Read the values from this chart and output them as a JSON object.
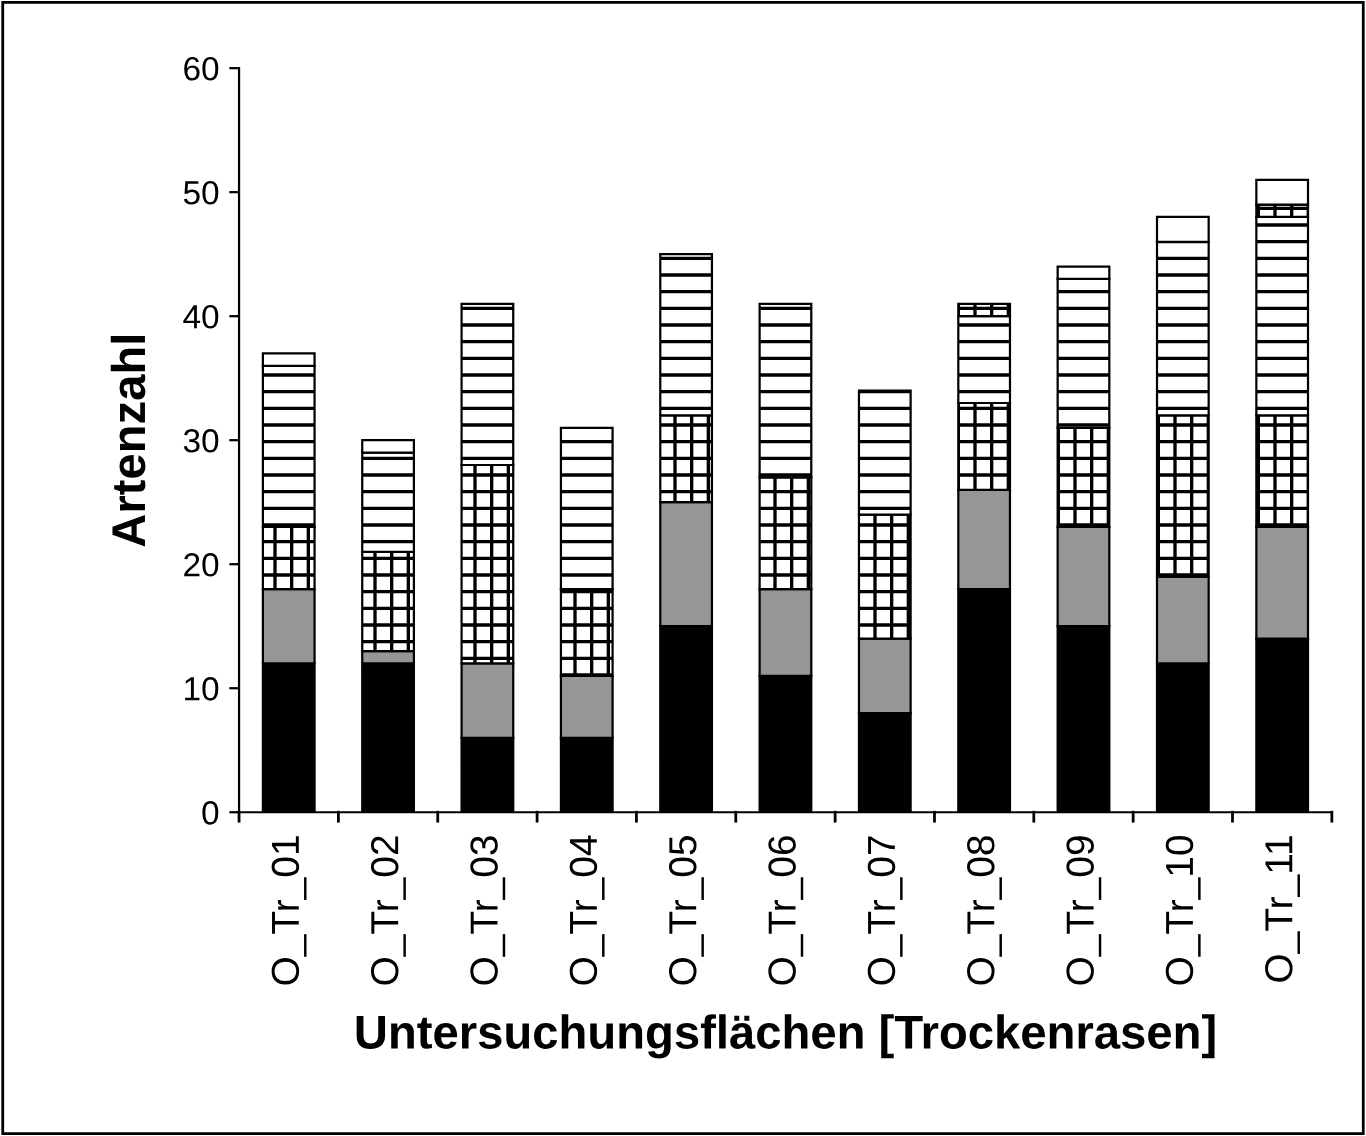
{
  "chart_data": {
    "type": "bar",
    "stacked": true,
    "xlabel": "Untersuchungsflächen [Trockenrasen]",
    "ylabel": "Artenzahl",
    "categories": [
      "O_Tr_01",
      "O_Tr_02",
      "O_Tr_03",
      "O_Tr_04",
      "O_Tr_05",
      "O_Tr_06",
      "O_Tr_07",
      "O_Tr_08",
      "O_Tr_09",
      "O_Tr_10",
      "O_Tr_11"
    ],
    "series": [
      {
        "color": "#000000",
        "values": [
          12,
          12,
          6,
          6,
          15,
          11,
          8,
          18,
          15,
          12,
          14
        ]
      },
      {
        "color": "#969696",
        "values": [
          6,
          1,
          6,
          5,
          10,
          7,
          6,
          8,
          8,
          7,
          9
        ]
      },
      {
        "color": "#000000",
        "values": [
          5,
          8,
          16,
          7,
          7,
          9,
          10,
          7,
          8,
          13,
          9
        ]
      },
      {
        "color": "#000000",
        "values": [
          13,
          8,
          13,
          13,
          13,
          14,
          10,
          7,
          12,
          14,
          16
        ]
      },
      {
        "color": "#000000",
        "values": [
          null,
          null,
          null,
          null,
          null,
          null,
          null,
          1,
          null,
          null,
          1
        ]
      },
      {
        "color": "#ffffff",
        "values": [
          1,
          1,
          null,
          null,
          null,
          null,
          null,
          null,
          1,
          2,
          2
        ]
      }
    ],
    "ylim": [
      0,
      60
    ],
    "yticks": [
      0,
      10,
      20,
      30,
      40,
      50,
      60
    ]
  }
}
